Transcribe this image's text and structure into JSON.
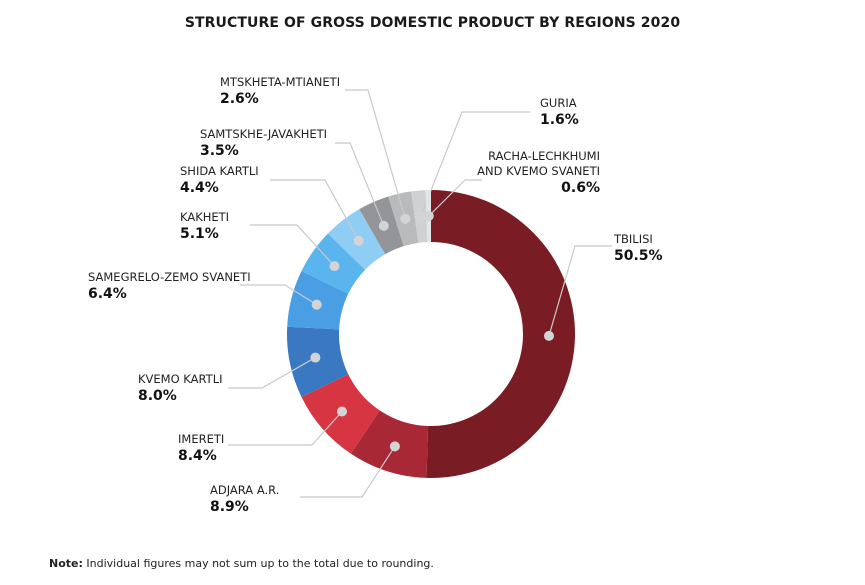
{
  "chart_data": {
    "type": "pie",
    "donut": true,
    "title": "STRUCTURE OF GROSS DOMESTIC PRODUCT BY REGIONS 2020",
    "unit": "%",
    "slices": [
      {
        "label": [
          "TBILISI"
        ],
        "value": 50.5,
        "value_label": "50.5%",
        "color": "#7a1c24"
      },
      {
        "label": [
          "ADJARA A.R."
        ],
        "value": 8.9,
        "value_label": "8.9%",
        "color": "#a82835"
      },
      {
        "label": [
          "IMERETI"
        ],
        "value": 8.4,
        "value_label": "8.4%",
        "color": "#d73542"
      },
      {
        "label": [
          "KVEMO KARTLI"
        ],
        "value": 8.0,
        "value_label": "8.0%",
        "color": "#3b78c2"
      },
      {
        "label": [
          "SAMEGRELO-ZEMO SVANETI"
        ],
        "value": 6.4,
        "value_label": "6.4%",
        "color": "#4a9ee4"
      },
      {
        "label": [
          "KAKHETI"
        ],
        "value": 5.1,
        "value_label": "5.1%",
        "color": "#5ab4ee"
      },
      {
        "label": [
          "SHIDA KARTLI"
        ],
        "value": 4.4,
        "value_label": "4.4%",
        "color": "#90cdf4"
      },
      {
        "label": [
          "SAMTSKHE-JAVAKHETI"
        ],
        "value": 3.5,
        "value_label": "3.5%",
        "color": "#939598"
      },
      {
        "label": [
          "MTSKHETA-MTIANETI"
        ],
        "value": 2.6,
        "value_label": "2.6%",
        "color": "#b9babc"
      },
      {
        "label": [
          "GURIA"
        ],
        "value": 1.6,
        "value_label": "1.6%",
        "color": "#d0d1d3"
      },
      {
        "label": [
          "RACHA-LECHKHUMI",
          "AND KVEMO SVANETI"
        ],
        "value": 0.6,
        "value_label": "0.6%",
        "color": "#e4e5e6"
      }
    ]
  },
  "note": {
    "bold": "Note:",
    "text": " Individual figures may not sum up to the total due to rounding."
  }
}
